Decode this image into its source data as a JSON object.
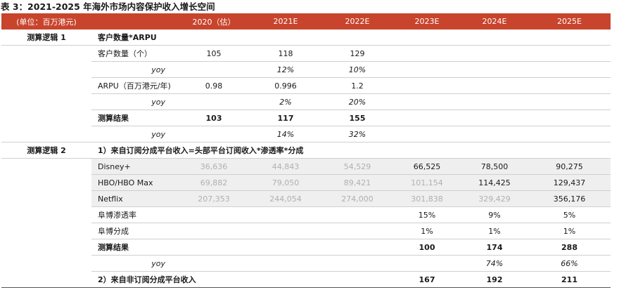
{
  "title": "表 3：2021-2025 年海外市场内容保护收入增长空间",
  "header": [
    "(单位：百万港元)",
    "",
    "2020（估）",
    "2021E",
    "2022E",
    "2023E",
    "2024E",
    "2025E"
  ],
  "rows": [
    [
      "测算逻辑 1",
      "客户数量*ARPU",
      "",
      "",
      "",
      "",
      "",
      ""
    ],
    [
      "",
      "客户数量（个）",
      "105",
      "118",
      "129",
      "",
      "",
      ""
    ],
    [
      "",
      "yoy",
      "",
      "12%",
      "10%",
      "",
      "",
      ""
    ],
    [
      "",
      "ARPU（百万港元/年)",
      "0.98",
      "0.996",
      "1.2",
      "",
      "",
      ""
    ],
    [
      "",
      "yoy",
      "",
      "2%",
      "20%",
      "",
      "",
      ""
    ],
    [
      "",
      "测算结果",
      "103",
      "117",
      "155",
      "",
      "",
      ""
    ],
    [
      "",
      "yoy",
      "",
      "14%",
      "32%",
      "",
      "",
      ""
    ],
    [
      "测算逻辑 2",
      "1）来自订阅分成平台收入=头部平台订阅收入*渗透率*分成",
      "",
      "",
      "",
      "",
      "",
      ""
    ],
    [
      "",
      "Disney+",
      "36,636",
      "44,843",
      "54,529",
      "66,525",
      "78,500",
      "90,275"
    ],
    [
      "",
      "HBO/HBO  Max",
      "69,882",
      "79,050",
      "89,421",
      "101,154",
      "114,425",
      "129,437"
    ],
    [
      "",
      "Netflix",
      "207,353",
      "244,054",
      "274,000",
      "301,838",
      "329,429",
      "356,176"
    ],
    [
      "",
      "阜博渗透率",
      "",
      "",
      "",
      "15%",
      "9%",
      "5%"
    ],
    [
      "",
      "阜博分成",
      "",
      "",
      "",
      "1%",
      "1%",
      "1%"
    ],
    [
      "",
      "测算结果",
      "",
      "",
      "",
      "100",
      "174",
      "288"
    ],
    [
      "",
      "yoy",
      "",
      "",
      "",
      "",
      "74%",
      "66%"
    ],
    [
      "",
      "2）来自非订阅分成平台收入",
      "",
      "",
      "",
      "167",
      "192",
      "211"
    ]
  ],
  "colors": {
    "header_bg": "#c8442c",
    "header_text": "#ffffff",
    "faded_text": "#b0b0b0",
    "shade_bg": "#efefef"
  }
}
